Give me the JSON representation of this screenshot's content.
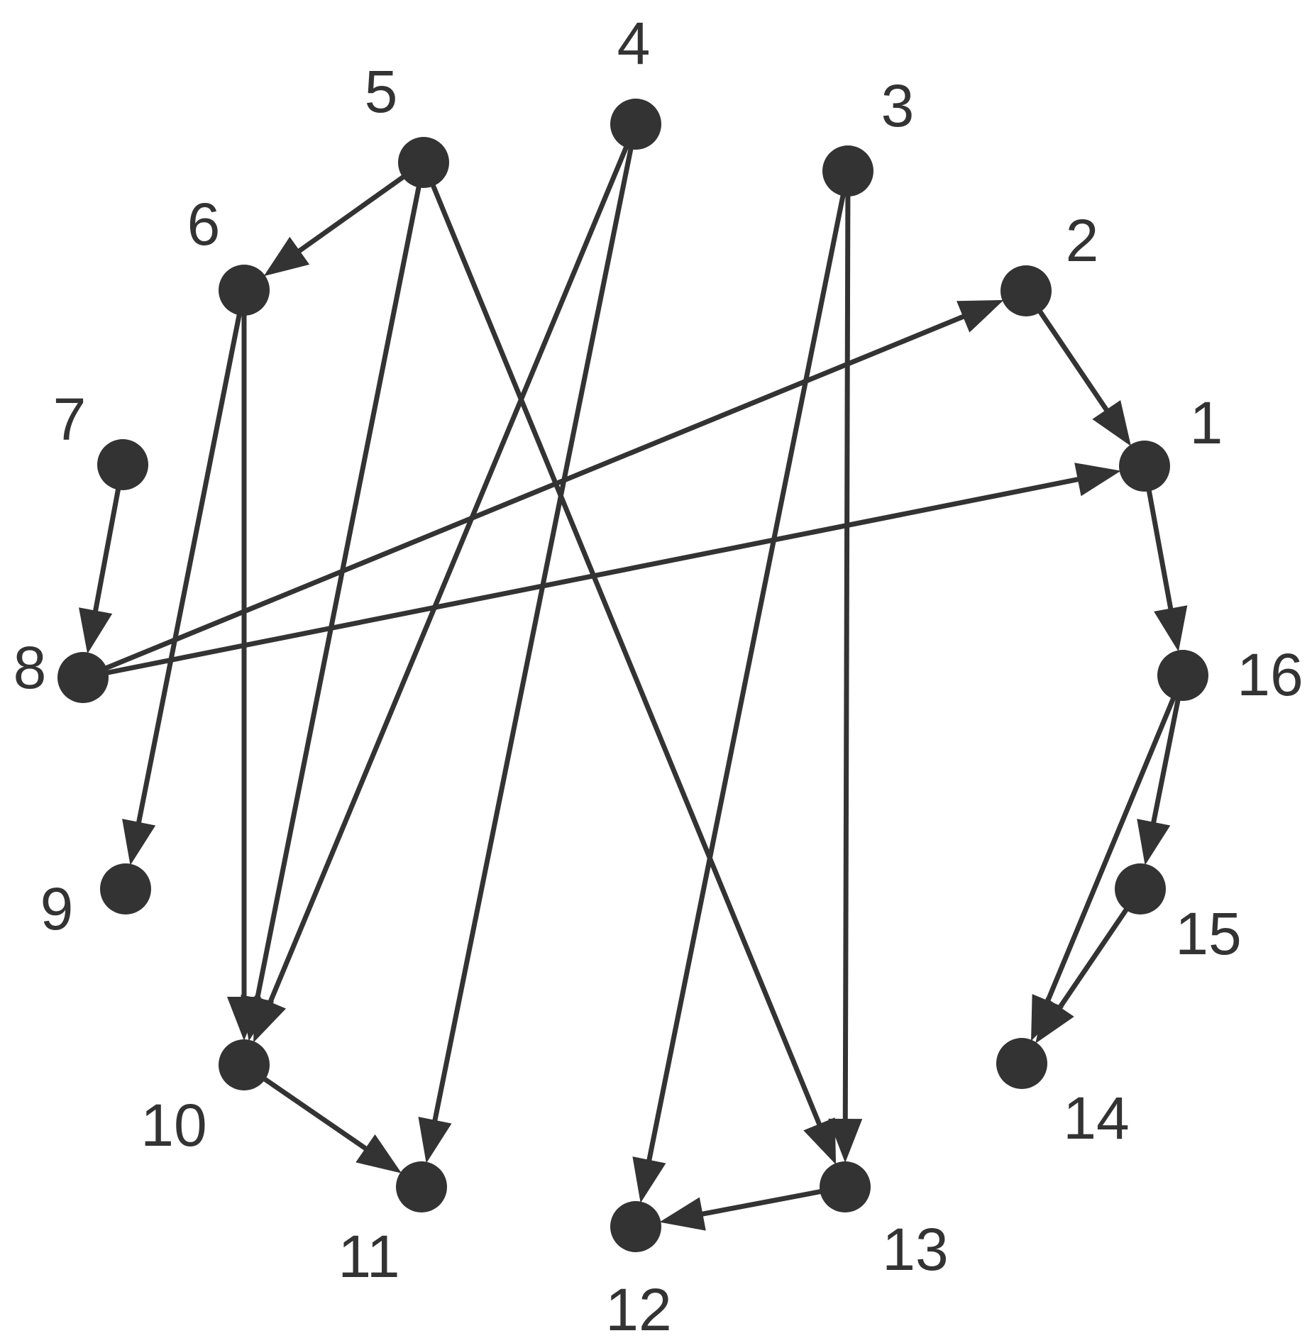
{
  "diagram": {
    "type": "directed-graph",
    "node_color": "#333333",
    "edge_color": "#333333",
    "nodes": [
      {
        "id": "1",
        "label": "1"
      },
      {
        "id": "2",
        "label": "2"
      },
      {
        "id": "3",
        "label": "3"
      },
      {
        "id": "4",
        "label": "4"
      },
      {
        "id": "5",
        "label": "5"
      },
      {
        "id": "6",
        "label": "6"
      },
      {
        "id": "7",
        "label": "7"
      },
      {
        "id": "8",
        "label": "8"
      },
      {
        "id": "9",
        "label": "9"
      },
      {
        "id": "10",
        "label": "10"
      },
      {
        "id": "11",
        "label": "11"
      },
      {
        "id": "12",
        "label": "12"
      },
      {
        "id": "13",
        "label": "13"
      },
      {
        "id": "14",
        "label": "14"
      },
      {
        "id": "15",
        "label": "15"
      },
      {
        "id": "16",
        "label": "16"
      }
    ],
    "edges": [
      {
        "from": "2",
        "to": "1"
      },
      {
        "from": "1",
        "to": "16"
      },
      {
        "from": "16",
        "to": "15"
      },
      {
        "from": "16",
        "to": "14"
      },
      {
        "from": "15",
        "to": "14"
      },
      {
        "from": "3",
        "to": "13"
      },
      {
        "from": "3",
        "to": "12"
      },
      {
        "from": "13",
        "to": "12"
      },
      {
        "from": "4",
        "to": "10"
      },
      {
        "from": "4",
        "to": "11"
      },
      {
        "from": "5",
        "to": "6"
      },
      {
        "from": "5",
        "to": "10"
      },
      {
        "from": "5",
        "to": "13"
      },
      {
        "from": "6",
        "to": "9"
      },
      {
        "from": "6",
        "to": "10"
      },
      {
        "from": "7",
        "to": "8"
      },
      {
        "from": "8",
        "to": "2"
      },
      {
        "from": "8",
        "to": "1"
      },
      {
        "from": "10",
        "to": "11"
      }
    ]
  }
}
